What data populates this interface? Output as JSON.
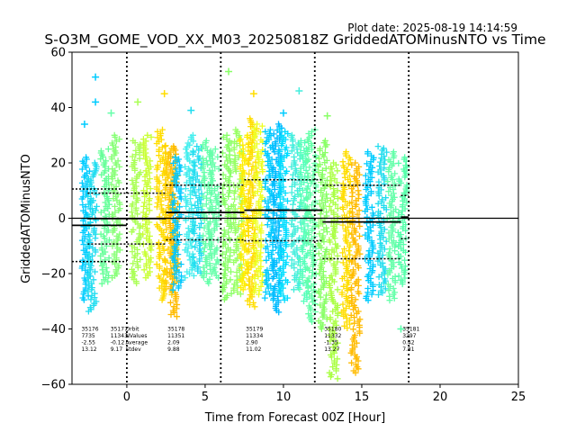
{
  "chart_data": {
    "type": "scatter",
    "title": "S-O3M_GOME_VOD_XX_M03_20250818Z GriddedATOMinusNTO vs Time",
    "plot_date": "Plot date: 2025-08-19 14:14:59",
    "xlabel": "Time from Forecast 00Z [Hour]",
    "ylabel": "GriddedATOMinusNTO",
    "xlim": [
      -3.5,
      25
    ],
    "ylim": [
      -60,
      60
    ],
    "xticks": [
      0,
      5,
      10,
      15,
      20,
      25
    ],
    "yticks": [
      -60,
      -40,
      -20,
      0,
      20,
      40,
      60
    ],
    "grid": false,
    "zero_line": 0,
    "vertical_dividers": [
      0,
      6,
      12,
      18
    ],
    "orbits": [
      {
        "orbit": "35176",
        "nvalues": "7735",
        "average": "-2.55",
        "stdev": "13.12",
        "x_start": -3.5,
        "x_end": 0,
        "mean": -2.55,
        "stdev_value": 13.12
      },
      {
        "orbit": "35177",
        "nvalues": "11343",
        "average": "-0.12",
        "stdev": "9.17",
        "x_start": -2.5,
        "x_end": 2.5,
        "mean": -0.12,
        "stdev_value": 9.17
      },
      {
        "orbit": "35178",
        "nvalues": "11351",
        "average": "2.09",
        "stdev": "9.88",
        "x_start": 2.5,
        "x_end": 7.5,
        "mean": 2.09,
        "stdev_value": 9.88
      },
      {
        "orbit": "35179",
        "nvalues": "11334",
        "average": "2.90",
        "stdev": "11.02",
        "x_start": 7.5,
        "x_end": 12.5,
        "mean": 2.9,
        "stdev_value": 11.02
      },
      {
        "orbit": "35180",
        "nvalues": "11332",
        "average": "-1.35",
        "stdev": "13.27",
        "x_start": 12.5,
        "x_end": 17.5,
        "mean": -1.35,
        "stdev_value": 13.27
      },
      {
        "orbit": "35181",
        "nvalues": "3297",
        "average": "0.42",
        "stdev": "7.81",
        "x_start": 17.5,
        "x_end": 18.0,
        "mean": 0.42,
        "stdev_value": 7.81
      }
    ],
    "stat_row_labels": [
      "Orbit",
      "NValues",
      "Average",
      "Stdev"
    ],
    "columns": [
      {
        "x": -2.6,
        "low": -30,
        "high": 22,
        "color": "#00ccff"
      },
      {
        "x": -2.2,
        "low": -34,
        "high": 20,
        "color": "#22ddf0"
      },
      {
        "x": -1.4,
        "low": -24,
        "high": 25,
        "color": "#66ff99"
      },
      {
        "x": -0.7,
        "low": -22,
        "high": 30,
        "color": "#88ff77"
      },
      {
        "x": 0.6,
        "low": -24,
        "high": 28,
        "color": "#aaff55"
      },
      {
        "x": 1.3,
        "low": -22,
        "high": 30,
        "color": "#c8ff33"
      },
      {
        "x": 2.2,
        "low": -30,
        "high": 32,
        "color": "#ffdd00"
      },
      {
        "x": 2.7,
        "low": -28,
        "high": 26,
        "color": "#ffd000"
      },
      {
        "x": 3.0,
        "low": -36,
        "high": 26,
        "color": "#ffbb00"
      },
      {
        "x": 3.2,
        "low": -26,
        "high": 22,
        "color": "#00c8ff"
      },
      {
        "x": 4.0,
        "low": -22,
        "high": 30,
        "color": "#44eeee"
      },
      {
        "x": 4.5,
        "low": -20,
        "high": 26,
        "color": "#22ddf0"
      },
      {
        "x": 5.1,
        "low": -24,
        "high": 28,
        "color": "#66ffaa"
      },
      {
        "x": 5.6,
        "low": -22,
        "high": 25,
        "color": "#66ffaa"
      },
      {
        "x": 6.4,
        "low": -30,
        "high": 30,
        "color": "#88ff66"
      },
      {
        "x": 7.1,
        "low": -28,
        "high": 32,
        "color": "#99ff66"
      },
      {
        "x": 7.5,
        "low": -26,
        "high": 30,
        "color": "#ffee00"
      },
      {
        "x": 8.0,
        "low": -32,
        "high": 36,
        "color": "#ffdd00"
      },
      {
        "x": 8.4,
        "low": -28,
        "high": 34,
        "color": "#eeff22"
      },
      {
        "x": 9.1,
        "low": -30,
        "high": 32,
        "color": "#00ccff"
      },
      {
        "x": 9.6,
        "low": -34,
        "high": 34,
        "color": "#00bbff"
      },
      {
        "x": 10.0,
        "low": -30,
        "high": 32,
        "color": "#00ddff"
      },
      {
        "x": 10.8,
        "low": -26,
        "high": 30,
        "color": "#44eedd"
      },
      {
        "x": 11.3,
        "low": -30,
        "high": 28,
        "color": "#55ffbb"
      },
      {
        "x": 11.8,
        "low": -38,
        "high": 32,
        "color": "#66ffaa"
      },
      {
        "x": 12.5,
        "low": -40,
        "high": 28,
        "color": "#88ff66"
      },
      {
        "x": 13.2,
        "low": -58,
        "high": 20,
        "color": "#aaff44"
      },
      {
        "x": 14.0,
        "low": -40,
        "high": 24,
        "color": "#ffdd00"
      },
      {
        "x": 14.6,
        "low": -56,
        "high": 20,
        "color": "#ffbb00"
      },
      {
        "x": 15.5,
        "low": -30,
        "high": 24,
        "color": "#00ccff"
      },
      {
        "x": 16.3,
        "low": -28,
        "high": 26,
        "color": "#22ddee"
      },
      {
        "x": 16.9,
        "low": -30,
        "high": 24,
        "color": "#66ffaa"
      },
      {
        "x": 17.6,
        "low": -24,
        "high": 22,
        "color": "#55ffaa"
      }
    ],
    "outliers": [
      {
        "x": -2.0,
        "y": 51,
        "color": "#00ccff"
      },
      {
        "x": -2.0,
        "y": 42,
        "color": "#00ccff"
      },
      {
        "x": -2.7,
        "y": 34,
        "color": "#00ccff"
      },
      {
        "x": -1.0,
        "y": 38,
        "color": "#66ffaa"
      },
      {
        "x": 0.7,
        "y": 42,
        "color": "#aaff55"
      },
      {
        "x": 2.4,
        "y": 45,
        "color": "#ffdd00"
      },
      {
        "x": 4.1,
        "y": 39,
        "color": "#22ddf0"
      },
      {
        "x": 6.5,
        "y": 53,
        "color": "#88ff66"
      },
      {
        "x": 8.1,
        "y": 45,
        "color": "#ffdd00"
      },
      {
        "x": 10.0,
        "y": 38,
        "color": "#00ccff"
      },
      {
        "x": 11.0,
        "y": 46,
        "color": "#44eedd"
      },
      {
        "x": 17.5,
        "y": -40,
        "color": "#55ffaa"
      },
      {
        "x": 12.8,
        "y": 37,
        "color": "#88ff66"
      }
    ]
  }
}
